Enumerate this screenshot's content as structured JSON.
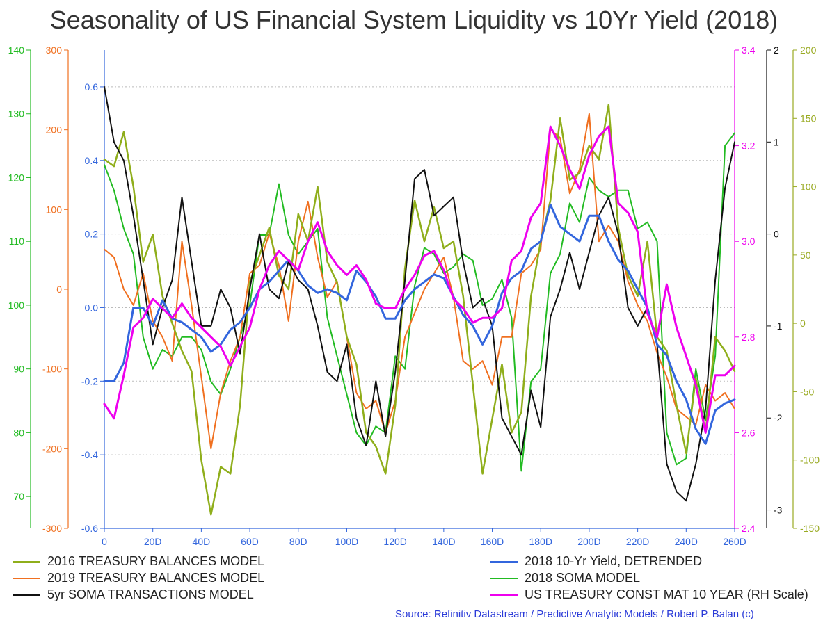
{
  "chart_data": {
    "type": "line",
    "title": "Seasonality of US Financial System Liquidity vs 10Yr Yield (2018)",
    "source": "Source: Refinitiv Datastream / Predictive Analytic Models / Robert P. Balan (c)",
    "x_ticks": [
      "0",
      "20D",
      "40D",
      "60D",
      "80D",
      "100D",
      "120D",
      "140D",
      "160D",
      "180D",
      "200D",
      "220D",
      "240D",
      "260D"
    ],
    "x_range": [
      0,
      260
    ],
    "axes": [
      {
        "id": "ax_green",
        "side": "left",
        "color": "#22bb22",
        "range": [
          65,
          140
        ],
        "ticks": [
          "70",
          "80",
          "90",
          "100",
          "110",
          "120",
          "130",
          "140"
        ],
        "tick_values": [
          70,
          80,
          90,
          100,
          110,
          120,
          130,
          140
        ]
      },
      {
        "id": "ax_orange",
        "side": "left",
        "color": "#f07020",
        "range": [
          -300,
          300
        ],
        "ticks": [
          "-300",
          "-200",
          "-100",
          "0",
          "100",
          "200",
          "300"
        ],
        "tick_values": [
          -300,
          -200,
          -100,
          0,
          100,
          200,
          300
        ]
      },
      {
        "id": "ax_blue",
        "side": "left",
        "color": "#3366dd",
        "range": [
          -0.6,
          0.7
        ],
        "ticks": [
          "-0.6",
          "-0.4",
          "-0.2",
          "0.0",
          "0.2",
          "0.4",
          "0.6"
        ],
        "tick_values": [
          -0.6,
          -0.4,
          -0.2,
          0.0,
          0.2,
          0.4,
          0.6
        ]
      },
      {
        "id": "ax_magenta",
        "side": "right",
        "color": "#ee00ee",
        "range": [
          2.4,
          3.4
        ],
        "ticks": [
          "2.4",
          "2.6",
          "2.8",
          "3.0",
          "3.2",
          "3.4"
        ],
        "tick_values": [
          2.4,
          2.6,
          2.8,
          3.0,
          3.2,
          3.4
        ]
      },
      {
        "id": "ax_black",
        "side": "right",
        "color": "#111111",
        "range": [
          -3.2,
          2
        ],
        "ticks": [
          "-3",
          "-2",
          "-1",
          "0",
          "1",
          "2"
        ],
        "tick_values": [
          -3,
          -2,
          -1,
          0,
          1,
          2
        ]
      },
      {
        "id": "ax_olive",
        "side": "right",
        "color": "#99aa22",
        "range": [
          -150,
          200
        ],
        "ticks": [
          "-150",
          "-100",
          "-50",
          "0",
          "50",
          "100",
          "150",
          "200"
        ],
        "tick_values": [
          -150,
          -100,
          -50,
          0,
          50,
          100,
          150,
          200
        ]
      }
    ],
    "grid": "horizontal dotted at blue-axis ticks",
    "series": [
      {
        "name": "2016 TREASURY BALANCES MODEL",
        "color": "#8fae1b",
        "width": 2.5,
        "axis": "ax_olive",
        "legend_pos": "bottom-left",
        "x": [
          0,
          4,
          8,
          12,
          16,
          20,
          24,
          28,
          32,
          36,
          40,
          44,
          48,
          52,
          56,
          60,
          64,
          68,
          72,
          76,
          80,
          84,
          88,
          92,
          96,
          100,
          104,
          108,
          112,
          116,
          120,
          124,
          128,
          132,
          136,
          140,
          144,
          148,
          152,
          156,
          160,
          164,
          168,
          172,
          176,
          180,
          184,
          188,
          192,
          196,
          200,
          204,
          208,
          212,
          216,
          220,
          224,
          228,
          232,
          236,
          240,
          244,
          248,
          252,
          256,
          260
        ],
        "values": [
          120,
          115,
          140,
          100,
          45,
          65,
          20,
          0,
          -20,
          -35,
          -100,
          -140,
          -105,
          -110,
          -60,
          30,
          50,
          70,
          35,
          25,
          80,
          60,
          100,
          45,
          30,
          -10,
          -30,
          -80,
          -90,
          -110,
          -60,
          40,
          90,
          60,
          85,
          55,
          60,
          20,
          -45,
          -110,
          -70,
          -30,
          -80,
          -65,
          20,
          60,
          90,
          150,
          105,
          110,
          130,
          120,
          160,
          70,
          35,
          20,
          60,
          -10,
          -20,
          -60,
          -95,
          -40,
          -80,
          -10,
          -20,
          -35
        ]
      },
      {
        "name": "2019 TREASURY BALANCES MODEL",
        "color": "#f07020",
        "width": 2,
        "axis": "ax_orange",
        "legend_pos": "bottom-left",
        "x": [
          0,
          4,
          8,
          12,
          16,
          20,
          24,
          28,
          32,
          36,
          40,
          44,
          48,
          52,
          56,
          60,
          64,
          68,
          72,
          76,
          80,
          84,
          88,
          92,
          96,
          100,
          104,
          108,
          112,
          116,
          120,
          124,
          128,
          132,
          136,
          140,
          144,
          148,
          152,
          156,
          160,
          164,
          168,
          172,
          176,
          180,
          184,
          188,
          192,
          196,
          200,
          204,
          208,
          212,
          216,
          220,
          224,
          228,
          232,
          236,
          240,
          244,
          248,
          252,
          256,
          260
        ],
        "values": [
          50,
          40,
          0,
          -20,
          20,
          -40,
          -60,
          -90,
          60,
          -20,
          -110,
          -200,
          -130,
          -90,
          -60,
          20,
          30,
          70,
          30,
          -40,
          60,
          110,
          40,
          -10,
          10,
          -60,
          -130,
          -150,
          -140,
          -180,
          -140,
          -60,
          -30,
          0,
          20,
          40,
          -10,
          -90,
          -100,
          -90,
          -120,
          -60,
          -60,
          20,
          30,
          50,
          200,
          190,
          120,
          150,
          220,
          60,
          80,
          60,
          10,
          -20,
          -40,
          -80,
          -110,
          -150,
          -160,
          -170,
          -120,
          -140,
          -130,
          -150
        ]
      },
      {
        "name": "5yr SOMA TRANSACTIONS MODEL",
        "color": "#111111",
        "width": 2,
        "axis": "ax_black",
        "legend_pos": "bottom-left",
        "x": [
          0,
          4,
          8,
          12,
          16,
          20,
          24,
          28,
          32,
          36,
          40,
          44,
          48,
          52,
          56,
          60,
          64,
          68,
          72,
          76,
          80,
          84,
          88,
          92,
          96,
          100,
          104,
          108,
          112,
          116,
          120,
          124,
          128,
          132,
          136,
          140,
          144,
          148,
          152,
          156,
          160,
          164,
          168,
          172,
          176,
          180,
          184,
          188,
          192,
          196,
          200,
          204,
          208,
          212,
          216,
          220,
          224,
          228,
          232,
          236,
          240,
          244,
          248,
          252,
          256,
          260
        ],
        "values": [
          1.6,
          1.0,
          0.8,
          0.2,
          -0.5,
          -1.2,
          -0.8,
          -0.5,
          0.4,
          -0.3,
          -1.0,
          -1.0,
          -0.6,
          -0.8,
          -1.3,
          -0.6,
          0.0,
          -0.6,
          -0.7,
          -0.3,
          -0.5,
          -0.6,
          -1.0,
          -1.5,
          -1.6,
          -1.2,
          -2.0,
          -2.3,
          -1.6,
          -2.2,
          -1.5,
          -0.5,
          0.6,
          0.7,
          0.2,
          0.3,
          0.4,
          -0.3,
          -0.8,
          -0.7,
          -1.0,
          -2.0,
          -2.2,
          -2.4,
          -1.7,
          -2.1,
          -0.9,
          -0.6,
          -0.2,
          -0.6,
          -0.2,
          0.2,
          0.4,
          0.0,
          -0.8,
          -1.0,
          -0.8,
          -1.2,
          -2.5,
          -2.8,
          -2.9,
          -2.5,
          -1.9,
          -0.5,
          0.5,
          1.0
        ]
      },
      {
        "name": "2018 10-Yr Yield, DETRENDED",
        "color": "#3366dd",
        "width": 3,
        "axis": "ax_blue",
        "legend_pos": "bottom-right",
        "x": [
          0,
          4,
          8,
          12,
          16,
          20,
          24,
          28,
          32,
          36,
          40,
          44,
          48,
          52,
          56,
          60,
          64,
          68,
          72,
          76,
          80,
          84,
          88,
          92,
          96,
          100,
          104,
          108,
          112,
          116,
          120,
          124,
          128,
          132,
          136,
          140,
          144,
          148,
          152,
          156,
          160,
          164,
          168,
          172,
          176,
          180,
          184,
          188,
          192,
          196,
          200,
          204,
          208,
          212,
          216,
          220,
          224,
          228,
          232,
          236,
          240,
          244,
          248,
          252,
          256,
          260
        ],
        "values": [
          -0.2,
          -0.2,
          -0.15,
          0.0,
          0.0,
          -0.05,
          0.02,
          -0.03,
          -0.04,
          -0.06,
          -0.08,
          -0.12,
          -0.1,
          -0.06,
          -0.04,
          0.0,
          0.05,
          0.07,
          0.1,
          0.13,
          0.1,
          0.06,
          0.04,
          0.05,
          0.04,
          0.02,
          0.1,
          0.07,
          0.03,
          -0.03,
          -0.03,
          0.02,
          0.05,
          0.07,
          0.09,
          0.08,
          0.03,
          -0.02,
          -0.05,
          -0.1,
          -0.05,
          0.04,
          0.08,
          0.1,
          0.16,
          0.18,
          0.28,
          0.22,
          0.2,
          0.18,
          0.25,
          0.25,
          0.18,
          0.13,
          0.1,
          0.05,
          0.0,
          -0.1,
          -0.13,
          -0.2,
          -0.25,
          -0.33,
          -0.37,
          -0.28,
          -0.26,
          -0.25
        ]
      },
      {
        "name": "2018 SOMA MODEL",
        "color": "#22bb22",
        "width": 2,
        "axis": "ax_green",
        "legend_pos": "bottom-right",
        "x": [
          0,
          4,
          8,
          12,
          16,
          20,
          24,
          28,
          32,
          36,
          40,
          44,
          48,
          52,
          56,
          60,
          64,
          68,
          72,
          76,
          80,
          84,
          88,
          92,
          96,
          100,
          104,
          108,
          112,
          116,
          120,
          124,
          128,
          132,
          136,
          140,
          144,
          148,
          152,
          156,
          160,
          164,
          168,
          172,
          176,
          180,
          184,
          188,
          192,
          196,
          200,
          204,
          208,
          212,
          216,
          220,
          224,
          228,
          232,
          236,
          240,
          244,
          248,
          252,
          256,
          260
        ],
        "values": [
          122,
          118,
          112,
          108,
          95,
          90,
          93,
          92,
          95,
          95,
          93,
          88,
          86,
          90,
          95,
          100,
          111,
          111,
          119,
          111,
          108,
          110,
          112,
          98,
          92,
          86,
          80,
          78,
          81,
          80,
          92,
          90,
          103,
          109,
          108,
          105,
          106,
          108,
          107,
          100,
          101,
          104,
          98,
          74,
          88,
          90,
          105,
          108,
          116,
          113,
          120,
          118,
          117,
          118,
          118,
          112,
          113,
          110,
          80,
          75,
          76,
          90,
          82,
          92,
          125,
          127
        ]
      },
      {
        "name": "US TREASURY CONST MAT 10 YEAR (RH Scale)",
        "color": "#ee00ee",
        "width": 3,
        "axis": "ax_magenta",
        "legend_pos": "bottom-right",
        "x": [
          0,
          4,
          8,
          12,
          16,
          20,
          24,
          28,
          32,
          36,
          40,
          44,
          48,
          52,
          56,
          60,
          64,
          68,
          72,
          76,
          80,
          84,
          88,
          92,
          96,
          100,
          104,
          108,
          112,
          116,
          120,
          124,
          128,
          132,
          136,
          140,
          144,
          148,
          152,
          156,
          160,
          164,
          168,
          172,
          176,
          180,
          184,
          188,
          192,
          196,
          200,
          204,
          208,
          212,
          216,
          220,
          224,
          228,
          232,
          236,
          240,
          244,
          248,
          252,
          256,
          260
        ],
        "values": [
          2.66,
          2.63,
          2.72,
          2.82,
          2.84,
          2.88,
          2.86,
          2.84,
          2.87,
          2.84,
          2.82,
          2.8,
          2.78,
          2.74,
          2.78,
          2.82,
          2.9,
          2.95,
          2.98,
          2.96,
          2.94,
          3.0,
          3.04,
          2.98,
          2.95,
          2.93,
          2.95,
          2.92,
          2.87,
          2.86,
          2.86,
          2.9,
          2.93,
          2.97,
          2.98,
          2.94,
          2.88,
          2.86,
          2.83,
          2.84,
          2.84,
          2.86,
          2.96,
          2.98,
          3.05,
          3.08,
          3.24,
          3.2,
          3.15,
          3.11,
          3.18,
          3.22,
          3.24,
          3.08,
          3.06,
          3.02,
          2.85,
          2.8,
          2.91,
          2.82,
          2.76,
          2.7,
          2.6,
          2.72,
          2.72,
          2.74
        ]
      }
    ]
  }
}
